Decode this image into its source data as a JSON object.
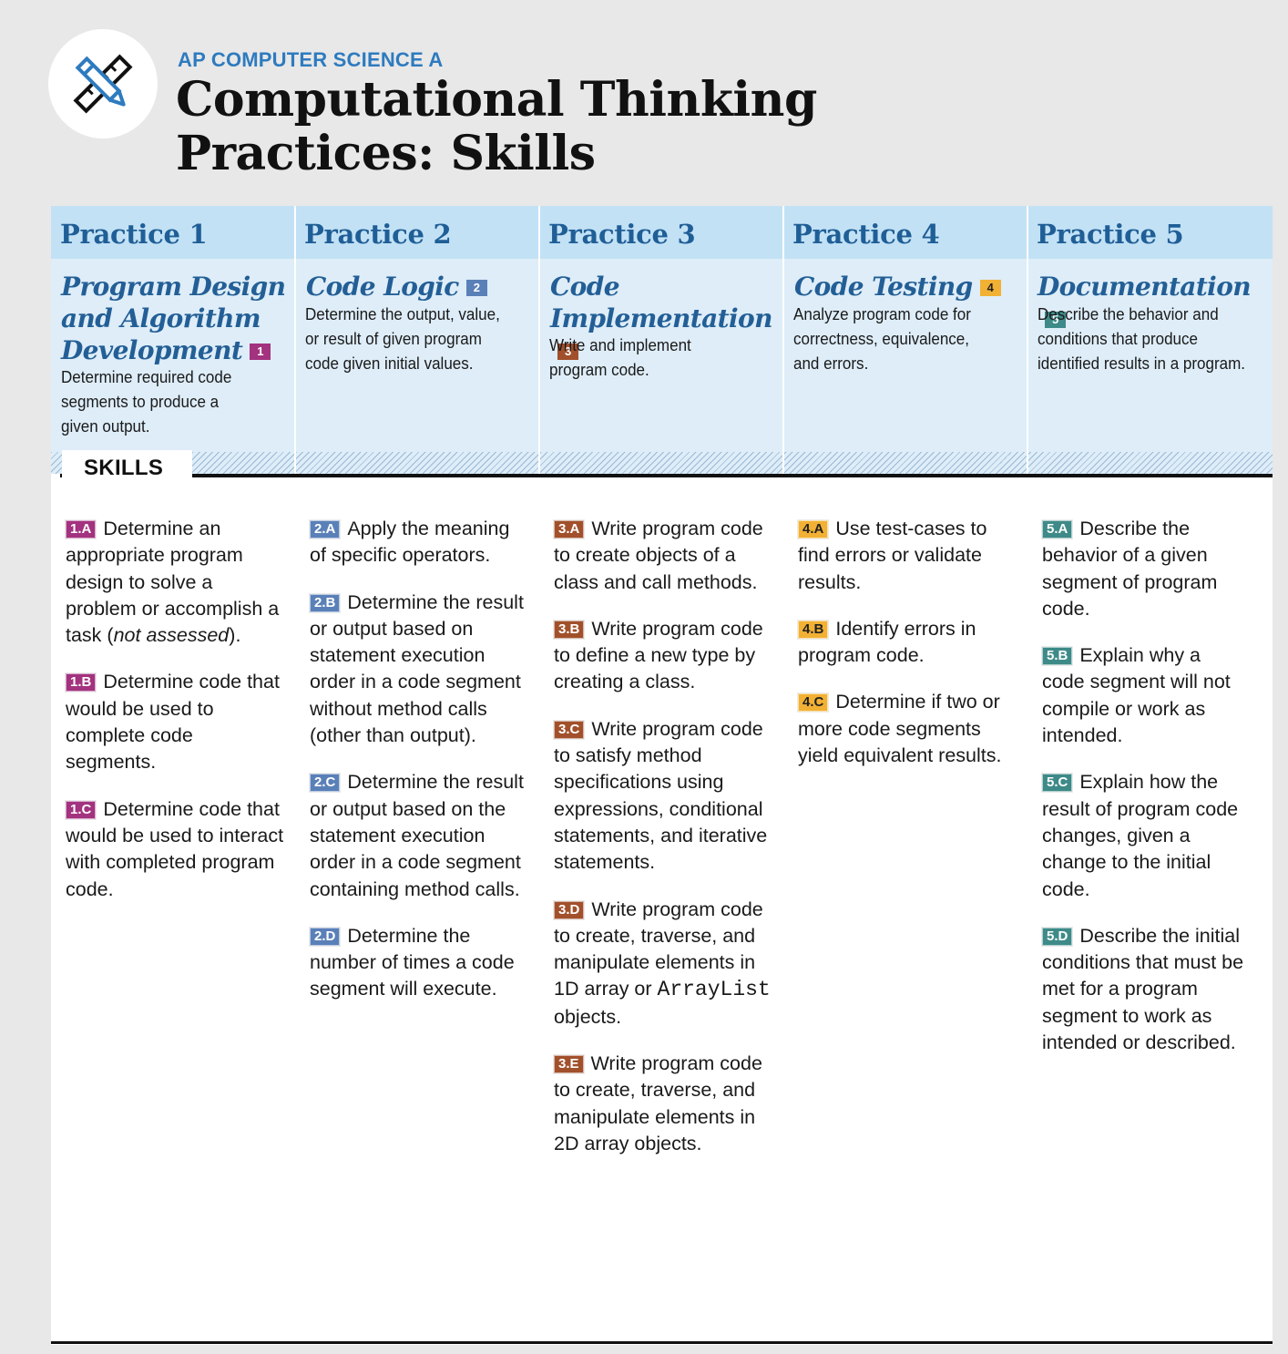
{
  "header": {
    "kicker": "AP COMPUTER SCIENCE A",
    "title_line1": "Computational Thinking",
    "title_line2": "Practices: Skills",
    "logo_icon": "pencil-ruler-icon"
  },
  "colors": {
    "title_blue": "#2e7bbf",
    "practice_blue": "#1f5e96",
    "practice1": "#a3327f",
    "practice2": "#5a80b8",
    "practice3": "#a1502b",
    "practice4": "#f2b134",
    "practice5": "#3e8a88"
  },
  "skills_label": "SKILLS",
  "practices": [
    {
      "heading": "Practice 1",
      "name": "Program Design and Algorithm Development",
      "badge": "1",
      "description": "Determine required code segments to produce a given output.",
      "skills": [
        {
          "code": "1.A",
          "text_before": "Determine an appropriate program design to solve a problem or accomplish a task (",
          "text_italic": "not assessed",
          "text_after": ")."
        },
        {
          "code": "1.B",
          "text_before": "Determine code that would be used to complete code segments.",
          "text_italic": "",
          "text_after": ""
        },
        {
          "code": "1.C",
          "text_before": "Determine code that would be used to interact with completed program code.",
          "text_italic": "",
          "text_after": ""
        }
      ]
    },
    {
      "heading": "Practice 2",
      "name": "Code Logic",
      "badge": "2",
      "description": "Determine the output, value, or result of given program code given initial values.",
      "skills": [
        {
          "code": "2.A",
          "text": "Apply the meaning of specific operators."
        },
        {
          "code": "2.B",
          "text": "Determine the result or output based on statement execution order in a code segment without method calls (other than output)."
        },
        {
          "code": "2.C",
          "text": "Determine the result or output based on the statement execution order in a code segment containing method calls."
        },
        {
          "code": "2.D",
          "text": "Determine the number of times a code segment will execute."
        }
      ]
    },
    {
      "heading": "Practice 3",
      "name": "Code Implementation",
      "badge": "3",
      "description": "Write and implement program code.",
      "skills": [
        {
          "code": "3.A",
          "text": "Write program code to create objects of a class and call methods."
        },
        {
          "code": "3.B",
          "text": "Write program code to define a new type by creating a class."
        },
        {
          "code": "3.C",
          "text": "Write program code to satisfy method specifications using expressions, conditional statements, and iterative statements."
        },
        {
          "code": "3.D",
          "text_before": "Write program code to create, traverse, and manipulate elements in 1D array or ",
          "text_mono": "ArrayList",
          "text_after": " objects."
        },
        {
          "code": "3.E",
          "text": "Write program code to create, traverse, and manipulate elements in 2D array objects."
        }
      ]
    },
    {
      "heading": "Practice 4",
      "name": "Code Testing",
      "badge": "4",
      "description": "Analyze program code for correctness, equivalence, and errors.",
      "skills": [
        {
          "code": "4.A",
          "text": "Use test-cases to find errors or validate results."
        },
        {
          "code": "4.B",
          "text": "Identify errors in program code."
        },
        {
          "code": "4.C",
          "text": "Determine if two or more code segments yield equivalent results."
        }
      ]
    },
    {
      "heading": "Practice 5",
      "name": "Documentation",
      "badge": "5",
      "description": "Describe the behavior and conditions that produce identified results in a program.",
      "skills": [
        {
          "code": "5.A",
          "text": "Describe the behavior of a given segment of program code."
        },
        {
          "code": "5.B",
          "text": "Explain why a code segment will not compile or work as intended."
        },
        {
          "code": "5.C",
          "text": "Explain how the result of program code changes, given a change to the initial code."
        },
        {
          "code": "5.D",
          "text": "Describe the initial conditions that must be met for a program segment to work as intended or described."
        }
      ]
    }
  ]
}
